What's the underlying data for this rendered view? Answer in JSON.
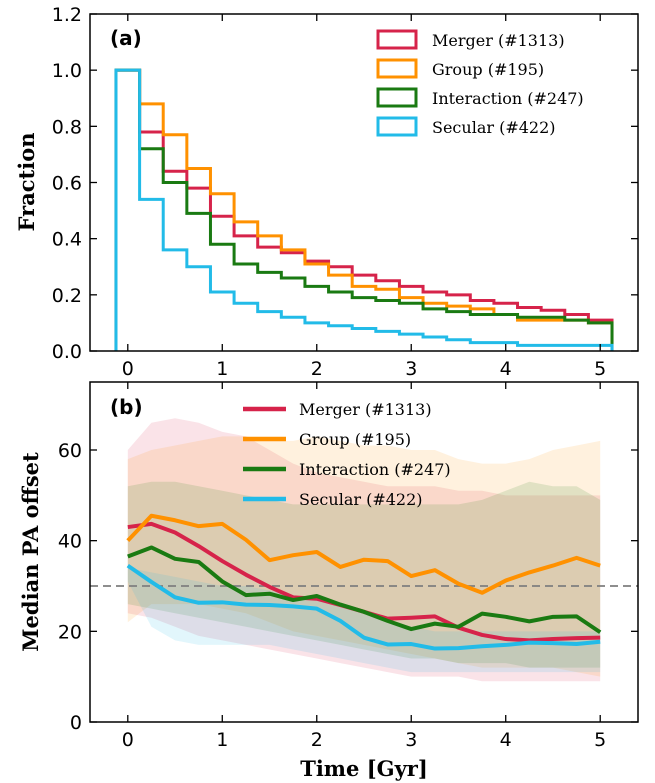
{
  "colors": {
    "merger": "#d6234a",
    "group": "#ff9100",
    "interaction": "#1a7a12",
    "secular": "#22bbe8",
    "reference": "#7f7f7f"
  },
  "xlabel": "Time [Gyr]",
  "chart_data": [
    {
      "panel_label": "(a)",
      "type": "line",
      "drawstyle": "steps",
      "ylabel": "Fraction",
      "xlim": [
        -0.4,
        5.4
      ],
      "ylim": [
        0.0,
        1.2
      ],
      "xticks": [
        0,
        1,
        2,
        3,
        4,
        5
      ],
      "yticks": [
        0.0,
        0.2,
        0.4,
        0.6,
        0.8,
        1.0,
        1.2
      ],
      "x_edges": [
        -0.125,
        0.125,
        0.375,
        0.625,
        0.875,
        1.125,
        1.375,
        1.625,
        1.875,
        2.125,
        2.375,
        2.625,
        2.875,
        3.125,
        3.375,
        3.625,
        3.875,
        4.125,
        4.375,
        4.625,
        4.875,
        5.125
      ],
      "legend_position": "upper right",
      "series": [
        {
          "name": "Merger (#1313)",
          "key": "merger",
          "values": [
            1.0,
            0.78,
            0.64,
            0.58,
            0.48,
            0.41,
            0.37,
            0.35,
            0.32,
            0.3,
            0.27,
            0.25,
            0.23,
            0.21,
            0.2,
            0.18,
            0.17,
            0.155,
            0.145,
            0.13,
            0.11
          ]
        },
        {
          "name": "Group (#195)",
          "key": "group",
          "values": [
            1.0,
            0.88,
            0.77,
            0.65,
            0.56,
            0.46,
            0.41,
            0.36,
            0.31,
            0.27,
            0.23,
            0.22,
            0.19,
            0.17,
            0.16,
            0.15,
            0.13,
            0.11,
            0.11,
            0.11,
            0.1
          ]
        },
        {
          "name": "Interaction (#247)",
          "key": "interaction",
          "values": [
            1.0,
            0.72,
            0.6,
            0.49,
            0.38,
            0.31,
            0.28,
            0.26,
            0.23,
            0.21,
            0.19,
            0.18,
            0.17,
            0.15,
            0.14,
            0.13,
            0.13,
            0.12,
            0.12,
            0.11,
            0.1
          ]
        },
        {
          "name": "Secular (#422)",
          "key": "secular",
          "values": [
            1.0,
            0.54,
            0.36,
            0.3,
            0.21,
            0.17,
            0.14,
            0.12,
            0.1,
            0.09,
            0.08,
            0.07,
            0.06,
            0.05,
            0.04,
            0.03,
            0.03,
            0.02,
            0.02,
            0.02,
            0.02
          ]
        }
      ]
    },
    {
      "panel_label": "(b)",
      "type": "line",
      "ylabel": "Median PA offset",
      "xlim": [
        -0.4,
        5.4
      ],
      "ylim": [
        0,
        75
      ],
      "xticks": [
        0,
        1,
        2,
        3,
        4,
        5
      ],
      "yticks": [
        0,
        20,
        40,
        60
      ],
      "reference_line": 30,
      "x": [
        0,
        0.25,
        0.5,
        0.75,
        1.0,
        1.25,
        1.5,
        1.75,
        2.0,
        2.25,
        2.5,
        2.75,
        3.0,
        3.25,
        3.5,
        3.75,
        4.0,
        4.25,
        4.5,
        4.75,
        5.0
      ],
      "legend_position": "upper center",
      "series": [
        {
          "name": "Merger (#1313)",
          "key": "merger",
          "values": [
            43,
            43.7,
            41.8,
            38.8,
            35.5,
            32.5,
            29.8,
            27.5,
            27.2,
            25.8,
            24.3,
            22.8,
            23.0,
            23.3,
            20.8,
            19.2,
            18.3,
            18.0,
            18.3,
            18.5,
            18.6
          ],
          "upper": [
            60,
            66,
            67,
            66,
            64,
            63,
            60,
            57,
            55,
            54,
            53,
            52,
            52,
            52,
            51,
            51,
            50,
            50,
            50,
            50,
            50
          ],
          "lower": [
            24,
            23,
            21,
            19,
            18,
            17,
            16,
            15,
            14,
            13,
            12,
            11,
            10,
            10,
            10,
            9,
            9,
            9,
            9,
            9,
            9
          ]
        },
        {
          "name": "Group (#195)",
          "key": "group",
          "values": [
            40,
            45.5,
            44.5,
            43.2,
            43.7,
            40.2,
            35.7,
            36.8,
            37.5,
            34.2,
            35.8,
            35.5,
            32.2,
            33.5,
            30.5,
            28.5,
            31.2,
            33.0,
            34.5,
            36.2,
            34.5
          ],
          "upper": [
            58,
            60,
            61,
            62,
            63,
            63,
            62,
            62,
            63,
            62,
            61,
            61,
            60,
            60,
            58,
            57,
            57,
            58,
            60,
            61,
            62
          ],
          "lower": [
            22,
            26,
            26,
            26,
            25,
            24,
            22,
            20,
            19,
            18,
            17,
            16,
            15,
            14,
            13,
            12,
            12,
            12,
            12,
            11,
            10
          ]
        },
        {
          "name": "Interaction (#247)",
          "key": "interaction",
          "values": [
            36.5,
            38.5,
            36.0,
            35.3,
            31.0,
            28.0,
            28.3,
            26.9,
            27.8,
            25.9,
            24.3,
            22.3,
            20.5,
            21.7,
            21.0,
            23.9,
            23.2,
            22.2,
            23.2,
            23.3,
            19.8
          ],
          "upper": [
            52,
            53,
            53,
            52,
            51,
            50,
            49,
            48,
            48,
            48,
            48,
            48,
            48,
            48,
            48,
            49,
            51,
            53,
            52,
            52,
            49
          ],
          "lower": [
            26,
            25,
            24,
            23,
            22,
            21,
            20,
            19,
            18,
            17,
            16,
            15,
            14,
            14,
            13,
            13,
            13,
            12,
            12,
            12,
            12
          ]
        },
        {
          "name": "Secular (#422)",
          "key": "secular",
          "values": [
            34.5,
            30.9,
            27.5,
            26.3,
            26.4,
            25.9,
            25.8,
            25.5,
            25.0,
            22.3,
            18.6,
            17.1,
            17.2,
            16.2,
            16.3,
            16.7,
            17.0,
            17.5,
            17.4,
            17.2,
            17.7
          ],
          "upper": [
            34,
            33,
            32,
            31,
            30,
            30,
            29,
            28,
            27,
            26,
            24,
            22,
            21,
            20,
            20,
            20,
            20,
            20,
            20,
            20,
            20
          ],
          "lower": [
            31,
            21,
            18,
            17,
            17,
            17,
            17,
            16,
            15,
            14,
            13,
            12,
            11,
            11,
            11,
            11,
            11,
            11,
            11,
            11,
            11
          ]
        }
      ]
    }
  ]
}
